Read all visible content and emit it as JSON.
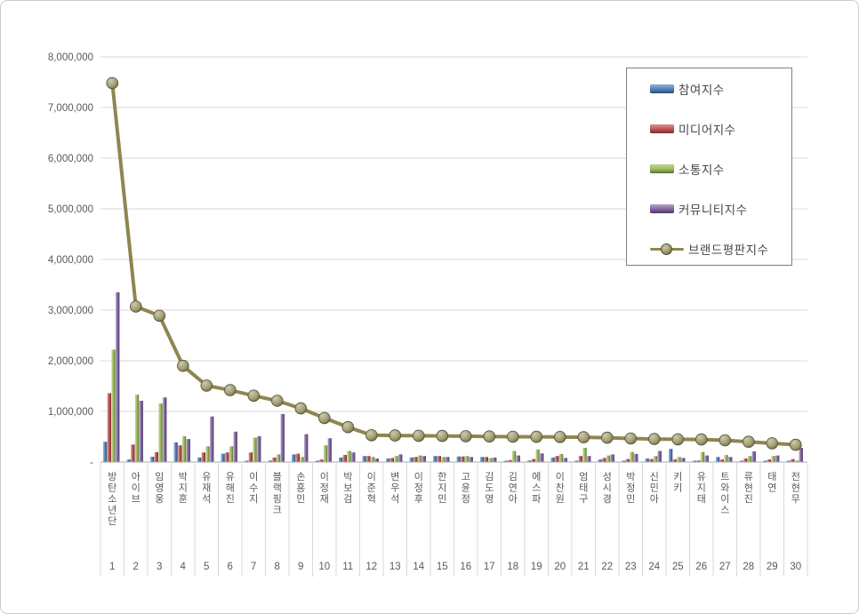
{
  "chart_data": {
    "type": "combo",
    "title": "",
    "categories": [
      "방탄소년단",
      "아이브",
      "임영웅",
      "박지훈",
      "유재석",
      "유해진",
      "이수지",
      "블랙핑크",
      "손흥민",
      "이정재",
      "박보검",
      "이준혁",
      "변우석",
      "이정후",
      "한지민",
      "고윤정",
      "김도영",
      "김연아",
      "에스파",
      "이찬원",
      "엄태구",
      "성시경",
      "박정민",
      "신민아",
      "키키",
      "유지태",
      "트와이스",
      "류현진",
      "태연",
      "전현무"
    ],
    "ranks": [
      "1",
      "2",
      "3",
      "4",
      "5",
      "6",
      "7",
      "8",
      "9",
      "10",
      "11",
      "12",
      "13",
      "14",
      "15",
      "16",
      "17",
      "18",
      "19",
      "20",
      "21",
      "22",
      "23",
      "24",
      "25",
      "26",
      "27",
      "28",
      "29",
      "30"
    ],
    "series": [
      {
        "name": "참여지수",
        "type": "bar",
        "color": "#4f81bd",
        "values": [
          400000,
          50000,
          105000,
          390000,
          90000,
          165000,
          20000,
          30000,
          150000,
          20000,
          90000,
          120000,
          70000,
          90000,
          120000,
          110000,
          100000,
          20000,
          30000,
          90000,
          20000,
          50000,
          20000,
          70000,
          260000,
          20000,
          100000,
          20000,
          20000,
          20000
        ]
      },
      {
        "name": "미디어지수",
        "type": "bar",
        "color": "#c0504d",
        "values": [
          1360000,
          345000,
          195000,
          330000,
          190000,
          190000,
          190000,
          90000,
          165000,
          50000,
          140000,
          120000,
          80000,
          100000,
          120000,
          110000,
          100000,
          40000,
          60000,
          120000,
          120000,
          80000,
          60000,
          60000,
          50000,
          30000,
          50000,
          70000,
          50000,
          60000
        ]
      },
      {
        "name": "소통지수",
        "type": "bar",
        "color": "#9bbb59",
        "values": [
          2220000,
          1330000,
          1155000,
          510000,
          310000,
          310000,
          480000,
          150000,
          100000,
          330000,
          220000,
          100000,
          120000,
          130000,
          100000,
          120000,
          80000,
          220000,
          250000,
          160000,
          280000,
          130000,
          200000,
          120000,
          100000,
          200000,
          140000,
          120000,
          120000,
          30000
        ]
      },
      {
        "name": "커뮤니티지수",
        "type": "bar",
        "color": "#8064a2",
        "values": [
          3350000,
          1210000,
          1275000,
          455000,
          900000,
          600000,
          510000,
          950000,
          550000,
          470000,
          190000,
          70000,
          150000,
          120000,
          100000,
          100000,
          90000,
          130000,
          170000,
          80000,
          120000,
          150000,
          160000,
          220000,
          80000,
          130000,
          100000,
          210000,
          130000,
          280000
        ]
      },
      {
        "name": "브랜드평판지수",
        "type": "line",
        "color": "#8e8650",
        "values": [
          7480000,
          3070000,
          2890000,
          1900000,
          1510000,
          1420000,
          1310000,
          1210000,
          1060000,
          870000,
          690000,
          530000,
          525000,
          520000,
          515000,
          510000,
          505000,
          500000,
          498000,
          495000,
          490000,
          480000,
          465000,
          455000,
          450000,
          445000,
          430000,
          400000,
          370000,
          340000
        ]
      }
    ],
    "ylim": [
      0,
      8000000
    ],
    "ytick_step": 1000000,
    "ytick_labels": [
      "-",
      "1,000,000",
      "2,000,000",
      "3,000,000",
      "4,000,000",
      "5,000,000",
      "6,000,000",
      "7,000,000",
      "8,000,000"
    ],
    "grid": true,
    "legend_position": "upper right"
  },
  "colors": {
    "grid": "#d9d9d9",
    "axis": "#a9a9a9",
    "tick_text": "#595959",
    "legend_text": "#474747",
    "legend_border": "#7f7f7f"
  }
}
